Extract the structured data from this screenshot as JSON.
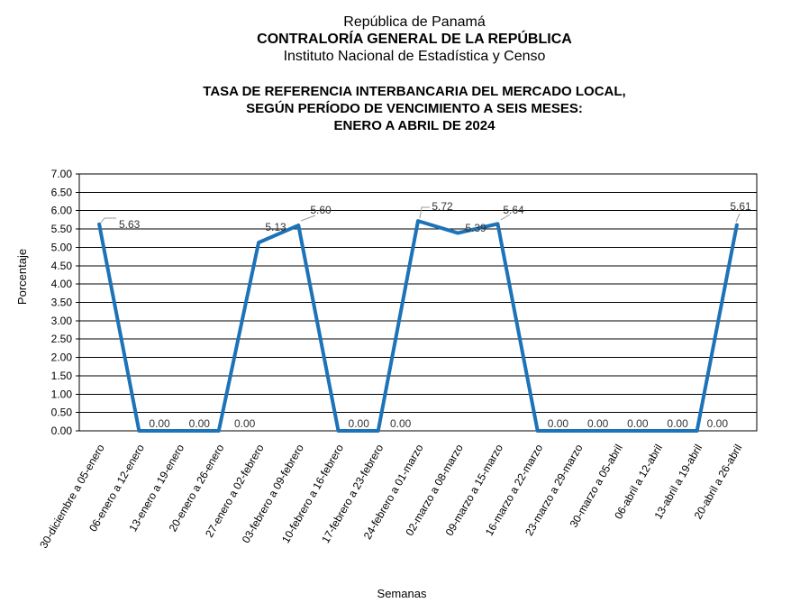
{
  "header": {
    "line1": "República de Panamá",
    "line2": "CONTRALORÍA GENERAL DE LA REPÚBLICA",
    "line3": "Instituto Nacional de Estadística y Censo"
  },
  "title": {
    "line1": "TASA DE REFERENCIA INTERBANCARIA DEL MERCADO LOCAL,",
    "line2": "SEGÚN PERÍODO DE VENCIMIENTO A SEIS MESES:",
    "line3": "ENERO A ABRIL DE 2024"
  },
  "chart_data": {
    "type": "line",
    "xlabel": "Semanas",
    "ylabel": "Porcentaje",
    "ylim": [
      0,
      7
    ],
    "ytick_step": 0.5,
    "grid": true,
    "legend": "none",
    "line_color": "#1D73B8",
    "categories": [
      "30-diciembre a 05-enero",
      "06-enero a 12-enero",
      "13-enero a 19-enero",
      "20-enero a 26-enero",
      "27-enero a 02-febrero",
      "03-febrero a 09-febrero",
      "10-febrero a 16-febrero",
      "17-febrero a 23-febrero",
      "24-febrero a 01-marzo",
      "02-marzo a 08-marzo",
      "09-marzo a 15-marzo",
      "16-marzo a 22-marzo",
      "23-marzo a 29-marzo",
      "30-marzo a 05-abril",
      "06-abril a 12-abril",
      "13-abril a 19-abril",
      "20-abril a 26-abril"
    ],
    "values": [
      5.63,
      0,
      0,
      0,
      5.13,
      5.6,
      0,
      0,
      5.72,
      5.39,
      5.64,
      0,
      0,
      0,
      0,
      0,
      5.61
    ],
    "labels": [
      "5.63",
      "0.00",
      "0.00",
      "0.00",
      "5.13",
      "5.60",
      "0.00",
      "0.00",
      "5.72",
      "5.39",
      "5.64",
      "0.00",
      "0.00",
      "0.00",
      "0.00",
      "0.00",
      "5.61"
    ]
  }
}
